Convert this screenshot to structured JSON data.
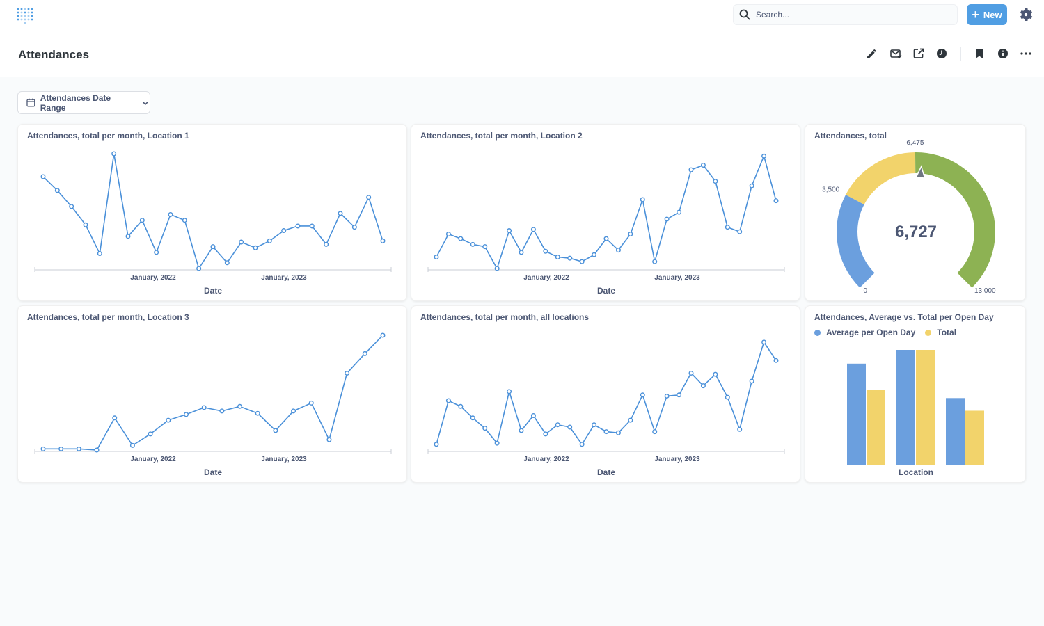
{
  "app": {
    "search_placeholder": "Search...",
    "new_label": "New"
  },
  "page": {
    "title": "Attendances"
  },
  "filter": {
    "label": "Attendances Date Range"
  },
  "colors": {
    "line": "#4a90d9",
    "blue": "#6b9fde",
    "yellow": "#f2d36b",
    "green": "#8db253"
  },
  "cards": [
    {
      "title": "Attendances, total per month, Location 1",
      "chart_data": {
        "type": "line",
        "xlabel": "Date",
        "x_ticks": [
          "January, 2022",
          "January, 2023"
        ],
        "values": [
          0.8,
          0.68,
          0.54,
          0.38,
          0.13,
          1.0,
          0.28,
          0.42,
          0.14,
          0.47,
          0.42,
          0.0,
          0.19,
          0.05,
          0.23,
          0.18,
          0.24,
          0.33,
          0.37,
          0.37,
          0.21,
          0.48,
          0.36,
          0.62,
          0.24
        ]
      }
    },
    {
      "title": "Attendances, total per month, Location 2",
      "chart_data": {
        "type": "line",
        "xlabel": "Date",
        "x_ticks": [
          "January, 2022",
          "January, 2023"
        ],
        "values": [
          0.1,
          0.3,
          0.26,
          0.21,
          0.19,
          0.0,
          0.33,
          0.14,
          0.34,
          0.15,
          0.1,
          0.09,
          0.06,
          0.12,
          0.26,
          0.16,
          0.3,
          0.6,
          0.06,
          0.43,
          0.49,
          0.86,
          0.9,
          0.76,
          0.36,
          0.32,
          0.72,
          0.98,
          0.59
        ]
      }
    },
    {
      "title": "Attendances, total",
      "chart_data": {
        "type": "gauge",
        "value": 6727,
        "value_label": "6,727",
        "min": 0,
        "max": 13000,
        "segments": [
          {
            "to": 3500,
            "color": "#6b9fde"
          },
          {
            "to": 6475,
            "color": "#f2d36b"
          },
          {
            "to": 13000,
            "color": "#8db253"
          }
        ],
        "tick_labels": [
          "0",
          "3,500",
          "6,475",
          "13,000"
        ]
      }
    },
    {
      "title": "Attendances, total per month, Location 3",
      "chart_data": {
        "type": "line",
        "xlabel": "Date",
        "x_ticks": [
          "January, 2022",
          "January, 2023"
        ],
        "values": [
          0.01,
          0.01,
          0.01,
          0.0,
          0.28,
          0.04,
          0.14,
          0.26,
          0.31,
          0.37,
          0.34,
          0.38,
          0.32,
          0.17,
          0.34,
          0.41,
          0.09,
          0.67,
          0.84,
          1.0
        ]
      }
    },
    {
      "title": "Attendances, total per month, all locations",
      "chart_data": {
        "type": "line",
        "xlabel": "Date",
        "x_ticks": [
          "January, 2022",
          "January, 2023"
        ],
        "values": [
          0.05,
          0.43,
          0.38,
          0.28,
          0.19,
          0.06,
          0.51,
          0.17,
          0.3,
          0.14,
          0.22,
          0.2,
          0.05,
          0.22,
          0.16,
          0.15,
          0.26,
          0.48,
          0.16,
          0.47,
          0.48,
          0.67,
          0.56,
          0.66,
          0.46,
          0.18,
          0.6,
          0.94,
          0.78
        ]
      }
    },
    {
      "title": "Attendances, Average vs. Total per Open Day",
      "chart_data": {
        "type": "bar",
        "xlabel": "Location",
        "series": [
          {
            "name": "Average per Open Day",
            "color": "#6b9fde",
            "values": [
              0.88,
              1.0,
              0.58
            ]
          },
          {
            "name": "Total",
            "color": "#f2d36b",
            "values": [
              0.65,
              1.0,
              0.47
            ]
          }
        ]
      }
    }
  ]
}
